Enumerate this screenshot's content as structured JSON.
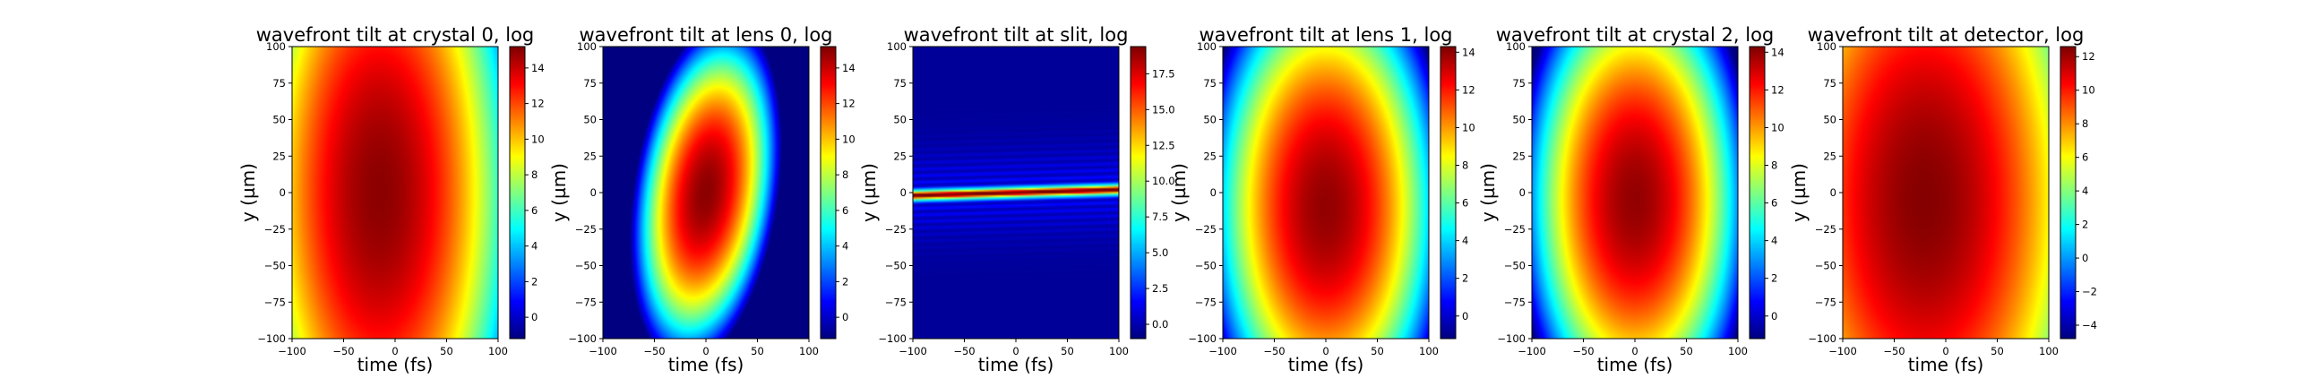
{
  "chart_data": [
    {
      "type": "heatmap",
      "title": "wavefront tilt at crystal 0, log",
      "xlabel": "time (fs)",
      "ylabel": "y (µm)",
      "xlim": [
        -100,
        100
      ],
      "ylim": [
        -100,
        100
      ],
      "x_ticks": [
        -100,
        -50,
        0,
        50,
        100
      ],
      "y_ticks": [
        -100,
        -75,
        -50,
        -25,
        0,
        25,
        50,
        75,
        100
      ],
      "colormap": "jet",
      "colorbar": {
        "min": -1.2,
        "max": 15.2,
        "ticks": [
          0,
          2,
          4,
          6,
          8,
          10,
          12,
          14
        ]
      },
      "field": {
        "peak": 15.0,
        "center": [
          -15,
          0
        ],
        "sx": 120,
        "sy": 220,
        "tilt": 0.0
      }
    },
    {
      "type": "heatmap",
      "title": "wavefront tilt at lens 0, log",
      "xlabel": "time (fs)",
      "ylabel": "y (µm)",
      "xlim": [
        -100,
        100
      ],
      "ylim": [
        -100,
        100
      ],
      "x_ticks": [
        -100,
        -50,
        0,
        50,
        100
      ],
      "y_ticks": [
        -100,
        -75,
        -50,
        -25,
        0,
        25,
        50,
        75,
        100
      ],
      "colormap": "jet",
      "colorbar": {
        "min": -1.2,
        "max": 15.2,
        "ticks": [
          0,
          2,
          4,
          6,
          8,
          10,
          12,
          14
        ]
      },
      "field": {
        "peak": 15.0,
        "center": [
          0,
          0
        ],
        "sx": 58,
        "sy": 90,
        "tilt": -0.45
      }
    },
    {
      "type": "heatmap",
      "title": "wavefront tilt at slit, log",
      "xlabel": "time (fs)",
      "ylabel": "y (µm)",
      "xlim": [
        -100,
        100
      ],
      "ylim": [
        -100,
        100
      ],
      "x_ticks": [
        -100,
        -50,
        0,
        50,
        100
      ],
      "y_ticks": [
        -100,
        -75,
        -50,
        -25,
        0,
        25,
        50,
        75,
        100
      ],
      "colormap": "jet",
      "colorbar": {
        "min": -1.0,
        "max": 19.4,
        "ticks": [
          0.0,
          2.5,
          5.0,
          7.5,
          10.0,
          12.5,
          15.0,
          17.5
        ]
      },
      "field": {
        "peak": 19.0,
        "floor": -0.5,
        "line_slope": 0.02,
        "line_width": 2.2,
        "halo_width": 20,
        "halo_amp": 2.5
      }
    },
    {
      "type": "heatmap",
      "title": "wavefront tilt at lens 1, log",
      "xlabel": "time (fs)",
      "ylabel": "y (µm)",
      "xlim": [
        -100,
        100
      ],
      "ylim": [
        -100,
        100
      ],
      "x_ticks": [
        -100,
        -50,
        0,
        50,
        100
      ],
      "y_ticks": [
        -100,
        -75,
        -50,
        -25,
        0,
        25,
        50,
        75,
        100
      ],
      "colormap": "jet",
      "colorbar": {
        "min": -1.2,
        "max": 14.3,
        "ticks": [
          0,
          2,
          4,
          6,
          8,
          10,
          12,
          14
        ]
      },
      "field": {
        "peak": 14.0,
        "center": [
          0,
          -10
        ],
        "sx": 100,
        "sy": 145,
        "tilt": 0.0
      }
    },
    {
      "type": "heatmap",
      "title": "wavefront tilt at crystal 2, log",
      "xlabel": "time (fs)",
      "ylabel": "y (µm)",
      "xlim": [
        -100,
        100
      ],
      "ylim": [
        -100,
        100
      ],
      "x_ticks": [
        -100,
        -50,
        0,
        50,
        100
      ],
      "y_ticks": [
        -100,
        -75,
        -50,
        -25,
        0,
        25,
        50,
        75,
        100
      ],
      "colormap": "jet",
      "colorbar": {
        "min": -1.2,
        "max": 14.3,
        "ticks": [
          0,
          2,
          4,
          6,
          8,
          10,
          12,
          14
        ]
      },
      "field": {
        "peak": 14.0,
        "center": [
          0,
          -5
        ],
        "sx": 95,
        "sy": 140,
        "tilt": 0.0
      }
    },
    {
      "type": "heatmap",
      "title": "wavefront tilt at detector, log",
      "xlabel": "time (fs)",
      "ylabel": "y (µm)",
      "xlim": [
        -100,
        100
      ],
      "ylim": [
        -100,
        100
      ],
      "x_ticks": [
        -100,
        -50,
        0,
        50,
        100
      ],
      "y_ticks": [
        -100,
        -75,
        -50,
        -25,
        0,
        25,
        50,
        75,
        100
      ],
      "colormap": "jet",
      "colorbar": {
        "min": -4.8,
        "max": 12.6,
        "ticks": [
          -4,
          -2,
          0,
          2,
          4,
          6,
          8,
          10,
          12
        ]
      },
      "field": {
        "peak": 12.5,
        "center": [
          -20,
          -5
        ],
        "sx": 150,
        "sy": 220,
        "tilt": 0.0
      }
    }
  ]
}
